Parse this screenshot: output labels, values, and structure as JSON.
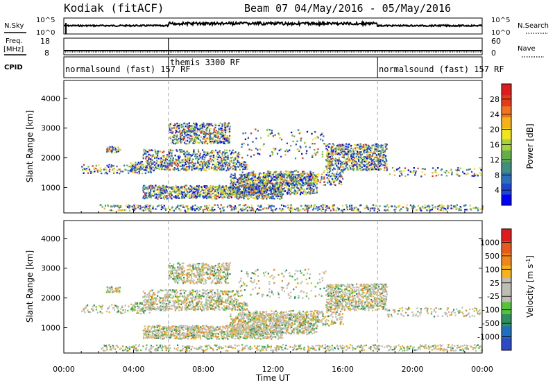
{
  "header": {
    "title": "Kodiak (fitACF)",
    "beam_info": "Beam 07  04/May/2016 - 05/May/2016"
  },
  "top_strips": {
    "sky_label": "N.Sky",
    "search_label": "N.Search",
    "sky_scale_hi": "10^5",
    "sky_scale_lo": "10^0",
    "freq_label_1": "Freq.",
    "freq_label_2": "[MHz]",
    "freq_ticks": [
      "18",
      "8"
    ],
    "nave_label": "Nave",
    "nave_ticks": [
      "60",
      "0"
    ],
    "cpid_label": "CPID",
    "segments": [
      {
        "text": "normalsound (fast) 157 RF",
        "start": "00:00",
        "end": "06:00"
      },
      {
        "text": "themis 3300 RF",
        "start": "06:00",
        "end": "18:00"
      },
      {
        "text": "normalsound (fast) 157 RF",
        "start": "18:00",
        "end": "24:00"
      }
    ]
  },
  "chart_data": [
    {
      "type": "heatmap",
      "panel": "power",
      "ylabel": "Slant Range [km]",
      "xlabel": "",
      "y_ticks": [
        "1000",
        "2000",
        "3000",
        "4000"
      ],
      "ylim": [
        150,
        4600
      ],
      "colorbar_label": "Power [dB]",
      "colorbar_ticks": [
        "4",
        "8",
        "12",
        "16",
        "20",
        "24",
        "28"
      ],
      "colormap": [
        "#0000ff",
        "#1f45d6",
        "#2b6fbd",
        "#3f8f7c",
        "#62b04b",
        "#a6d23a",
        "#f2e51a",
        "#f7b315",
        "#f2731a",
        "#e83a1b",
        "#e01b1b"
      ]
    },
    {
      "type": "heatmap",
      "panel": "velocity",
      "ylabel": "Slant Range [km]",
      "xlabel": "Time UT",
      "y_ticks": [
        "1000",
        "2000",
        "3000",
        "4000"
      ],
      "ylim": [
        150,
        4600
      ],
      "x_ticks": [
        "00:00",
        "04:00",
        "08:00",
        "12:00",
        "16:00",
        "20:00",
        "00:00"
      ],
      "colorbar_label": "Velocity [m s^-1]",
      "colorbar_ticks": [
        "1000",
        "500",
        "100",
        "25",
        "-25",
        "-100",
        "-500",
        "-1000"
      ],
      "colormap": [
        "#2b49c9",
        "#1f6fbf",
        "#2f8f5f",
        "#55c23a",
        "#bdbdb6",
        "#bdbdb6",
        "#f7b315",
        "#f2851a",
        "#e85a1b",
        "#e01b1b"
      ]
    }
  ]
}
